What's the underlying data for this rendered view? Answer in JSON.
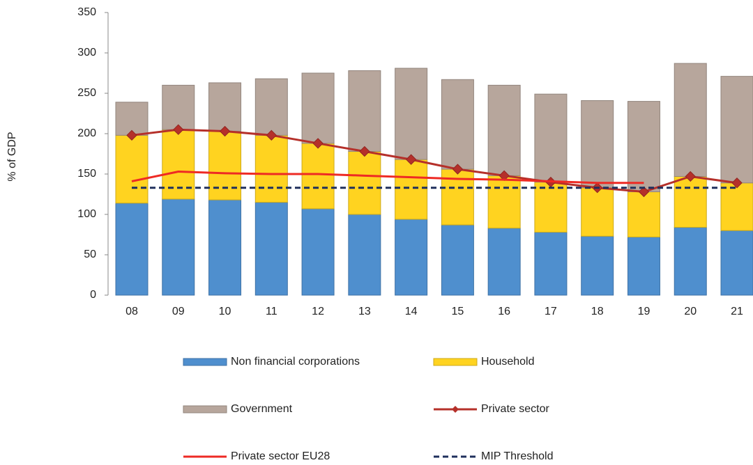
{
  "chart_data": {
    "type": "bar",
    "y_label": "% of GDP",
    "categories": [
      "08",
      "09",
      "10",
      "11",
      "12",
      "13",
      "14",
      "15",
      "16",
      "17",
      "18",
      "19",
      "20",
      "21"
    ],
    "ylim": [
      0,
      350
    ],
    "yticks": [
      0,
      50,
      100,
      150,
      200,
      250,
      300,
      350
    ],
    "series": [
      {
        "name": "Non financial corporations",
        "kind": "bar",
        "color": "#4f8fce",
        "values": [
          114,
          119,
          118,
          115,
          107,
          100,
          94,
          87,
          83,
          78,
          73,
          72,
          84,
          80
        ]
      },
      {
        "name": "Household",
        "kind": "bar",
        "color": "#ffd320",
        "values": [
          84,
          86,
          85,
          83,
          81,
          78,
          74,
          69,
          65,
          62,
          60,
          56,
          63,
          59
        ]
      },
      {
        "name": "Government",
        "kind": "bar",
        "color": "#b7a69c",
        "values": [
          41,
          55,
          60,
          70,
          87,
          100,
          113,
          111,
          112,
          109,
          108,
          112,
          140,
          132
        ]
      },
      {
        "name": "Private sector",
        "kind": "line",
        "marker": "diamond",
        "color": "#b5302a",
        "values": [
          198,
          205,
          203,
          198,
          188,
          178,
          168,
          156,
          148,
          140,
          133,
          128,
          147,
          139
        ]
      },
      {
        "name": "Private sector EU28",
        "kind": "line",
        "color": "#ee2a24",
        "values": [
          141,
          153,
          151,
          150,
          150,
          148,
          146,
          144,
          143,
          141,
          139,
          139,
          null,
          null
        ]
      },
      {
        "name": "MIP Threshold",
        "kind": "line",
        "dashed": true,
        "color": "#1f2f5c",
        "values": [
          133,
          133,
          133,
          133,
          133,
          133,
          133,
          133,
          133,
          133,
          133,
          133,
          133,
          133
        ]
      }
    ]
  }
}
